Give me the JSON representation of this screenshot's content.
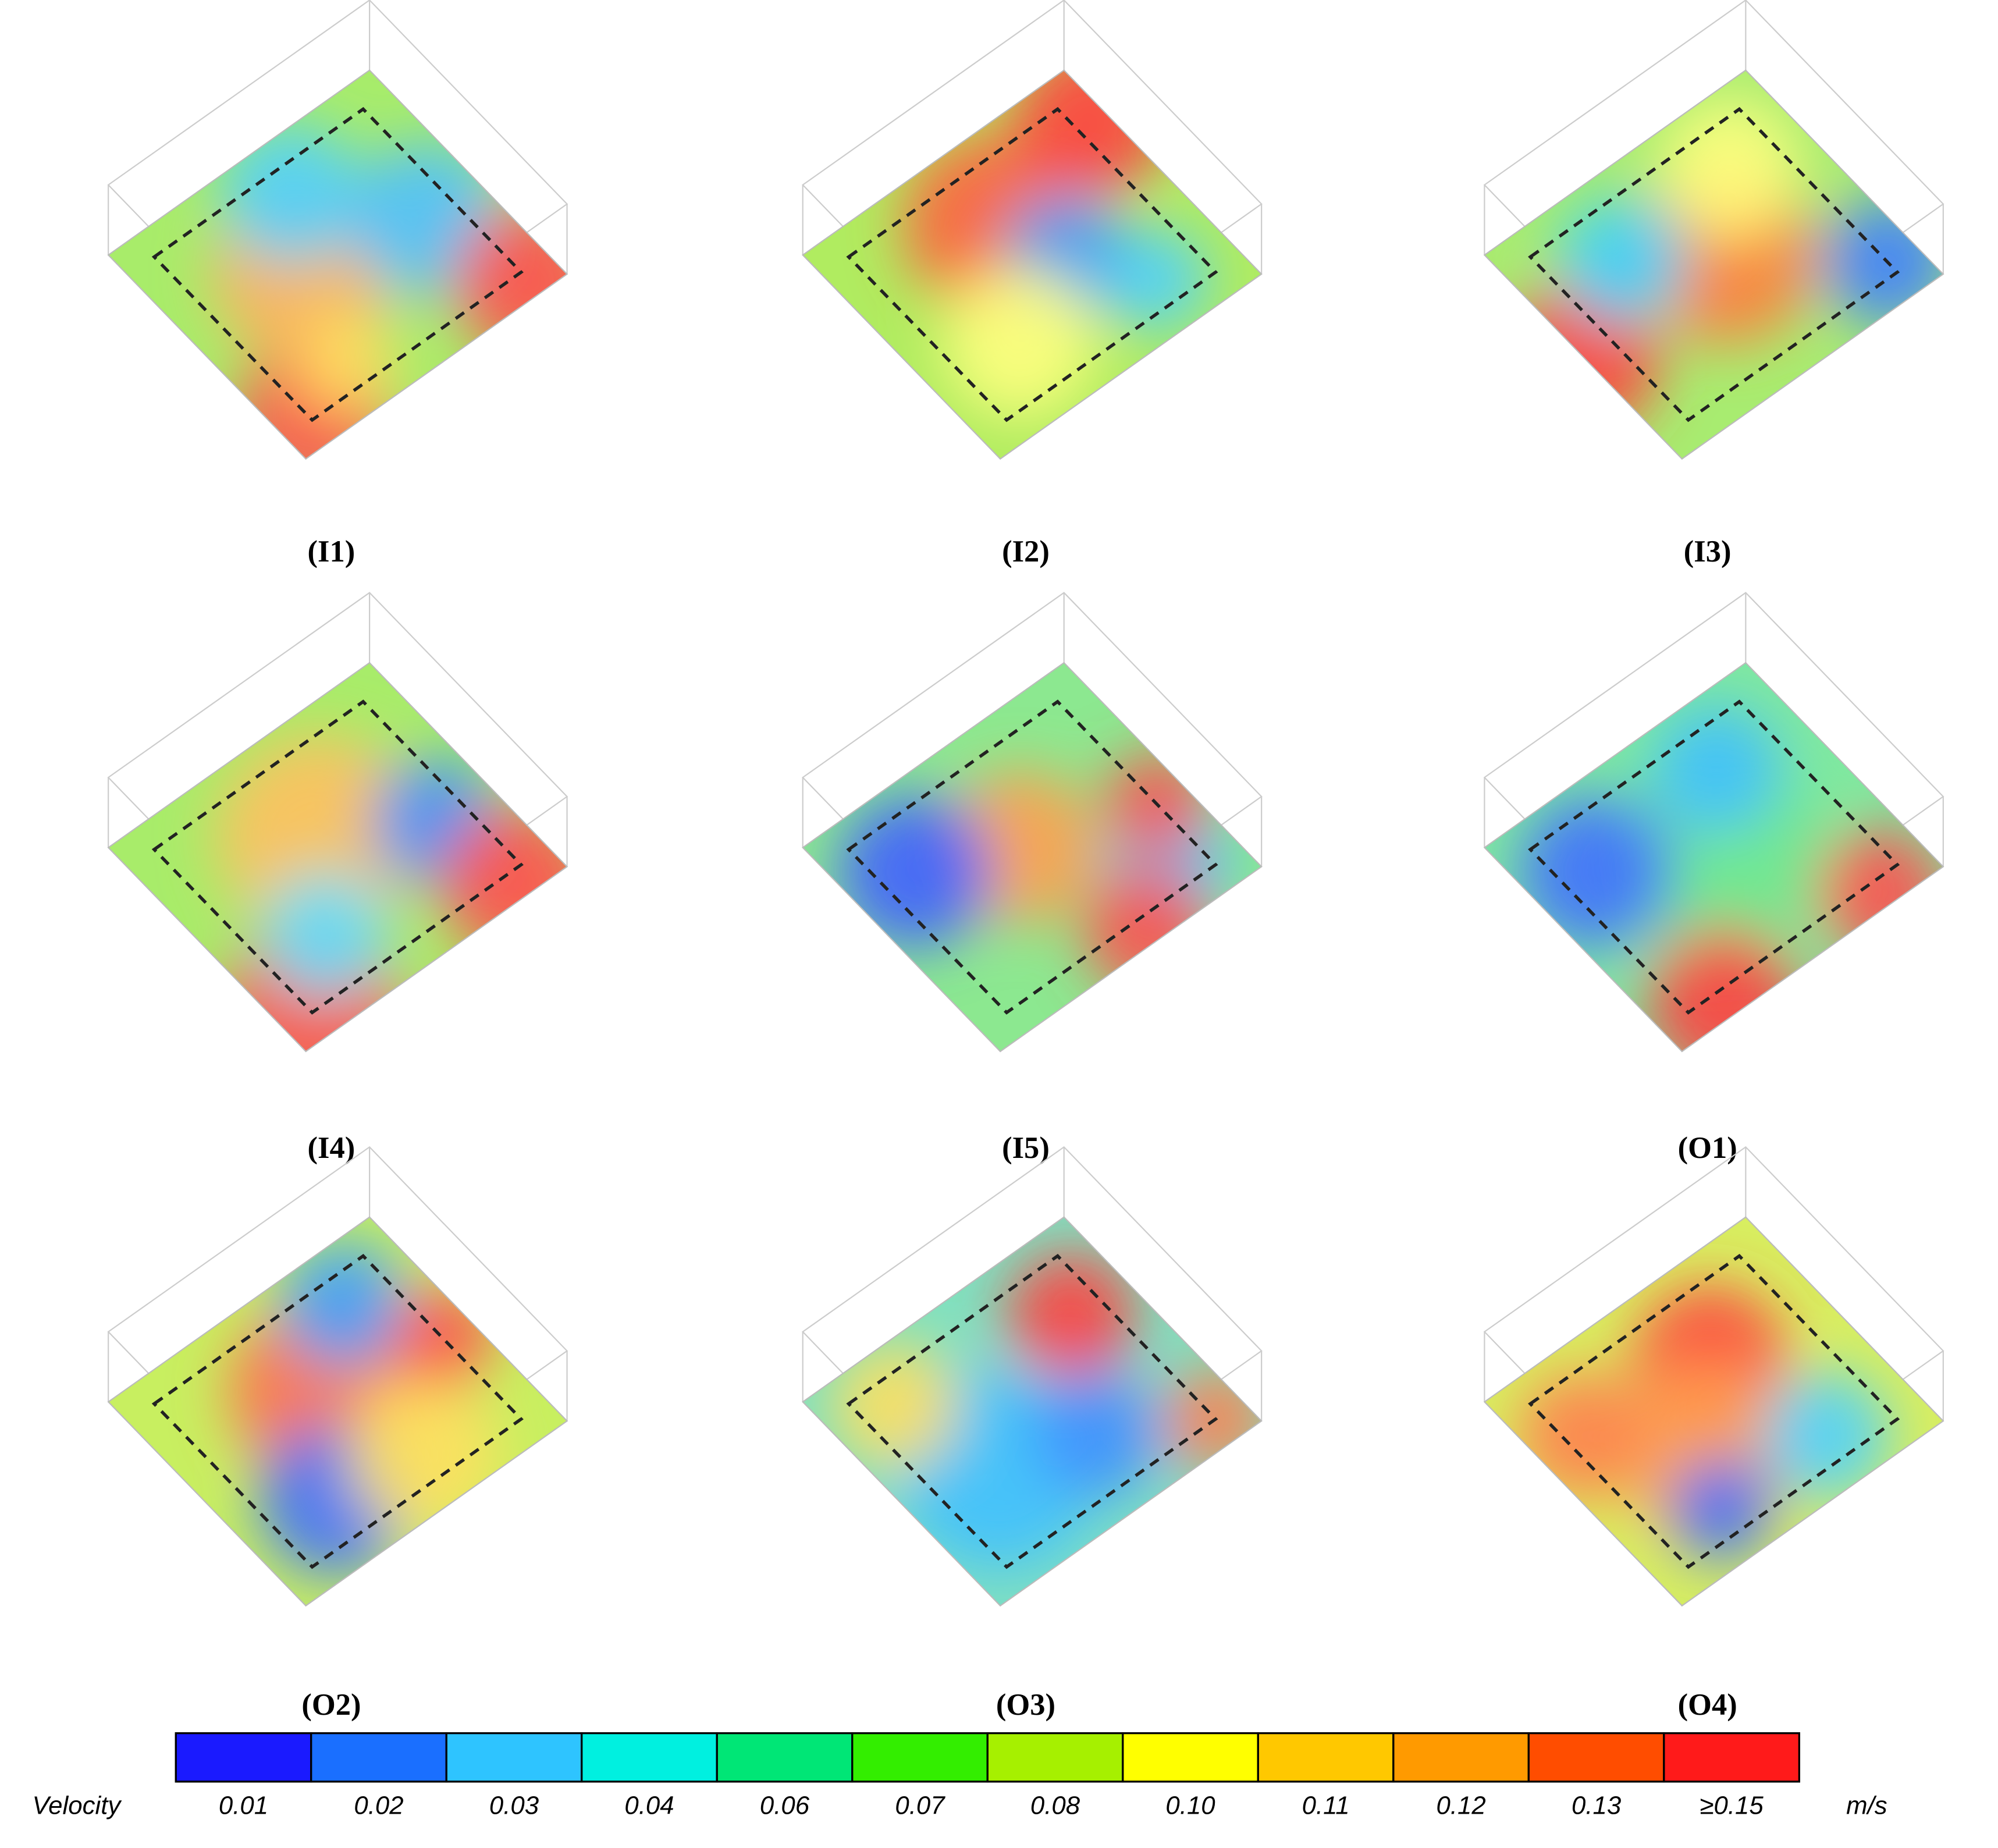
{
  "panels": [
    {
      "label": "(I1)"
    },
    {
      "label": "(I2)"
    },
    {
      "label": "(I3)"
    },
    {
      "label": "(I4)"
    },
    {
      "label": "(I5)"
    },
    {
      "label": "(O1)"
    },
    {
      "label": "(O2)"
    },
    {
      "label": "(O3)"
    },
    {
      "label": "(O4)"
    }
  ],
  "legend": {
    "title": "Velocity",
    "unit": "m/s",
    "labels": [
      "0.01",
      "0.02",
      "0.03",
      "0.04",
      "0.06",
      "0.07",
      "0.08",
      "0.10",
      "0.11",
      "0.12",
      "0.13",
      "≥0.15"
    ],
    "colors": [
      "#1a1aff",
      "#1a6fff",
      "#2ec4ff",
      "#00f0e0",
      "#00e676",
      "#33ee00",
      "#a6f000",
      "#ffff00",
      "#ffc800",
      "#ff9a00",
      "#ff4d00",
      "#ff1a1a"
    ]
  }
}
